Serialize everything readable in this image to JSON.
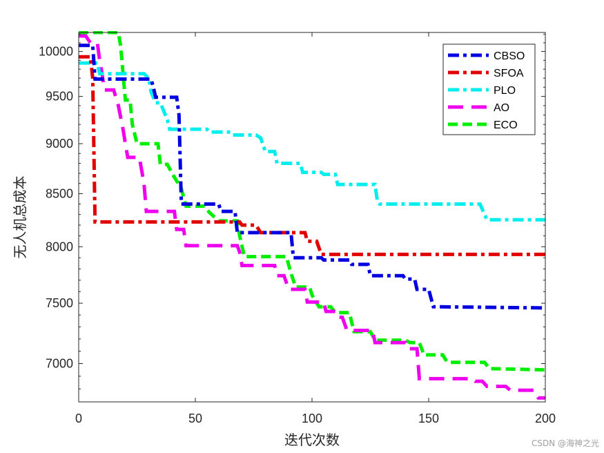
{
  "chart_data": {
    "type": "line",
    "title": "",
    "xlabel": "迭代次数",
    "ylabel": "无人机总成本",
    "xlim": [
      0,
      200
    ],
    "ylim": [
      6700,
      10220
    ],
    "y_scale": "log",
    "xticks": [
      0,
      50,
      100,
      150,
      200
    ],
    "yticks": [
      7000,
      7500,
      8000,
      8500,
      9000,
      9500,
      10000
    ],
    "grid": false,
    "legend_position": "top-right",
    "series": [
      {
        "name": "CBSO",
        "color": "#0000e0",
        "dash": "dash-dot",
        "points": [
          [
            0,
            10070
          ],
          [
            6,
            10070
          ],
          [
            7,
            9690
          ],
          [
            31,
            9690
          ],
          [
            32,
            9600
          ],
          [
            33,
            9490
          ],
          [
            42,
            9490
          ],
          [
            43,
            9300
          ],
          [
            44,
            8400
          ],
          [
            60,
            8400
          ],
          [
            61,
            8330
          ],
          [
            67,
            8330
          ],
          [
            68,
            8130
          ],
          [
            91,
            8130
          ],
          [
            92,
            7900
          ],
          [
            104,
            7900
          ],
          [
            105,
            7880
          ],
          [
            116,
            7880
          ],
          [
            117,
            7840
          ],
          [
            124,
            7840
          ],
          [
            125,
            7740
          ],
          [
            139,
            7740
          ],
          [
            140,
            7710
          ],
          [
            144,
            7710
          ],
          [
            145,
            7620
          ],
          [
            150,
            7620
          ],
          [
            152,
            7470
          ],
          [
            200,
            7460
          ]
        ]
      },
      {
        "name": "SFOA",
        "color": "#e00000",
        "dash": "dash-dot",
        "points": [
          [
            0,
            9940
          ],
          [
            5,
            9940
          ],
          [
            6,
            9700
          ],
          [
            7,
            8230
          ],
          [
            69,
            8230
          ],
          [
            70,
            8200
          ],
          [
            76,
            8200
          ],
          [
            78,
            8130
          ],
          [
            97,
            8130
          ],
          [
            98,
            8050
          ],
          [
            102,
            8050
          ],
          [
            104,
            7930
          ],
          [
            200,
            7930
          ]
        ]
      },
      {
        "name": "PLO",
        "color": "#00eeee",
        "dash": "dash-dot",
        "points": [
          [
            0,
            9870
          ],
          [
            8,
            9870
          ],
          [
            9,
            9750
          ],
          [
            28,
            9750
          ],
          [
            30,
            9700
          ],
          [
            31,
            9550
          ],
          [
            33,
            9430
          ],
          [
            35,
            9430
          ],
          [
            38,
            9250
          ],
          [
            39,
            9150
          ],
          [
            55,
            9150
          ],
          [
            56,
            9120
          ],
          [
            65,
            9120
          ],
          [
            66,
            9090
          ],
          [
            76,
            9090
          ],
          [
            78,
            9060
          ],
          [
            80,
            8920
          ],
          [
            84,
            8920
          ],
          [
            85,
            8800
          ],
          [
            95,
            8800
          ],
          [
            96,
            8710
          ],
          [
            104,
            8710
          ],
          [
            105,
            8690
          ],
          [
            110,
            8690
          ],
          [
            111,
            8590
          ],
          [
            127,
            8590
          ],
          [
            128,
            8430
          ],
          [
            129,
            8400
          ],
          [
            172,
            8400
          ],
          [
            174,
            8300
          ],
          [
            175,
            8250
          ],
          [
            200,
            8250
          ]
        ]
      },
      {
        "name": "AO",
        "color": "#ee00ee",
        "dash": "long-dash",
        "points": [
          [
            0,
            10180
          ],
          [
            3,
            10180
          ],
          [
            5,
            10100
          ],
          [
            8,
            10100
          ],
          [
            9,
            9900
          ],
          [
            10,
            9750
          ],
          [
            11,
            9570
          ],
          [
            15,
            9570
          ],
          [
            17,
            9400
          ],
          [
            19,
            9150
          ],
          [
            21,
            8860
          ],
          [
            26,
            8860
          ],
          [
            28,
            8600
          ],
          [
            29,
            8330
          ],
          [
            41,
            8330
          ],
          [
            42,
            8160
          ],
          [
            45,
            8160
          ],
          [
            46,
            8010
          ],
          [
            68,
            8010
          ],
          [
            69,
            7950
          ],
          [
            70,
            7830
          ],
          [
            74,
            7830
          ],
          [
            75,
            7830
          ],
          [
            84,
            7830
          ],
          [
            85,
            7740
          ],
          [
            88,
            7740
          ],
          [
            90,
            7620
          ],
          [
            97,
            7620
          ],
          [
            98,
            7510
          ],
          [
            105,
            7510
          ],
          [
            106,
            7430
          ],
          [
            110,
            7430
          ],
          [
            111,
            7380
          ],
          [
            113,
            7380
          ],
          [
            115,
            7270
          ],
          [
            126,
            7270
          ],
          [
            127,
            7170
          ],
          [
            140,
            7170
          ],
          [
            141,
            7120
          ],
          [
            145,
            7120
          ],
          [
            146,
            6880
          ],
          [
            169,
            6880
          ],
          [
            170,
            6860
          ],
          [
            173,
            6860
          ],
          [
            175,
            6820
          ],
          [
            183,
            6820
          ],
          [
            185,
            6790
          ],
          [
            195,
            6790
          ],
          [
            197,
            6730
          ],
          [
            200,
            6730
          ]
        ]
      },
      {
        "name": "ECO",
        "color": "#00ee00",
        "dash": "dashed",
        "points": [
          [
            0,
            10220
          ],
          [
            17,
            10220
          ],
          [
            18,
            10060
          ],
          [
            20,
            9460
          ],
          [
            22,
            9460
          ],
          [
            23,
            9200
          ],
          [
            25,
            9000
          ],
          [
            34,
            9000
          ],
          [
            35,
            8790
          ],
          [
            38,
            8790
          ],
          [
            40,
            8700
          ],
          [
            44,
            8550
          ],
          [
            46,
            8380
          ],
          [
            54,
            8380
          ],
          [
            56,
            8320
          ],
          [
            60,
            8240
          ],
          [
            68,
            8240
          ],
          [
            69,
            8100
          ],
          [
            71,
            7910
          ],
          [
            89,
            7910
          ],
          [
            91,
            7760
          ],
          [
            93,
            7640
          ],
          [
            99,
            7640
          ],
          [
            100,
            7570
          ],
          [
            103,
            7470
          ],
          [
            108,
            7470
          ],
          [
            110,
            7420
          ],
          [
            116,
            7420
          ],
          [
            118,
            7260
          ],
          [
            125,
            7260
          ],
          [
            127,
            7190
          ],
          [
            140,
            7190
          ],
          [
            142,
            7170
          ],
          [
            146,
            7170
          ],
          [
            148,
            7070
          ],
          [
            156,
            7070
          ],
          [
            158,
            7010
          ],
          [
            174,
            7010
          ],
          [
            176,
            6960
          ],
          [
            200,
            6950
          ]
        ]
      }
    ]
  },
  "watermark": "CSDN @海神之光"
}
